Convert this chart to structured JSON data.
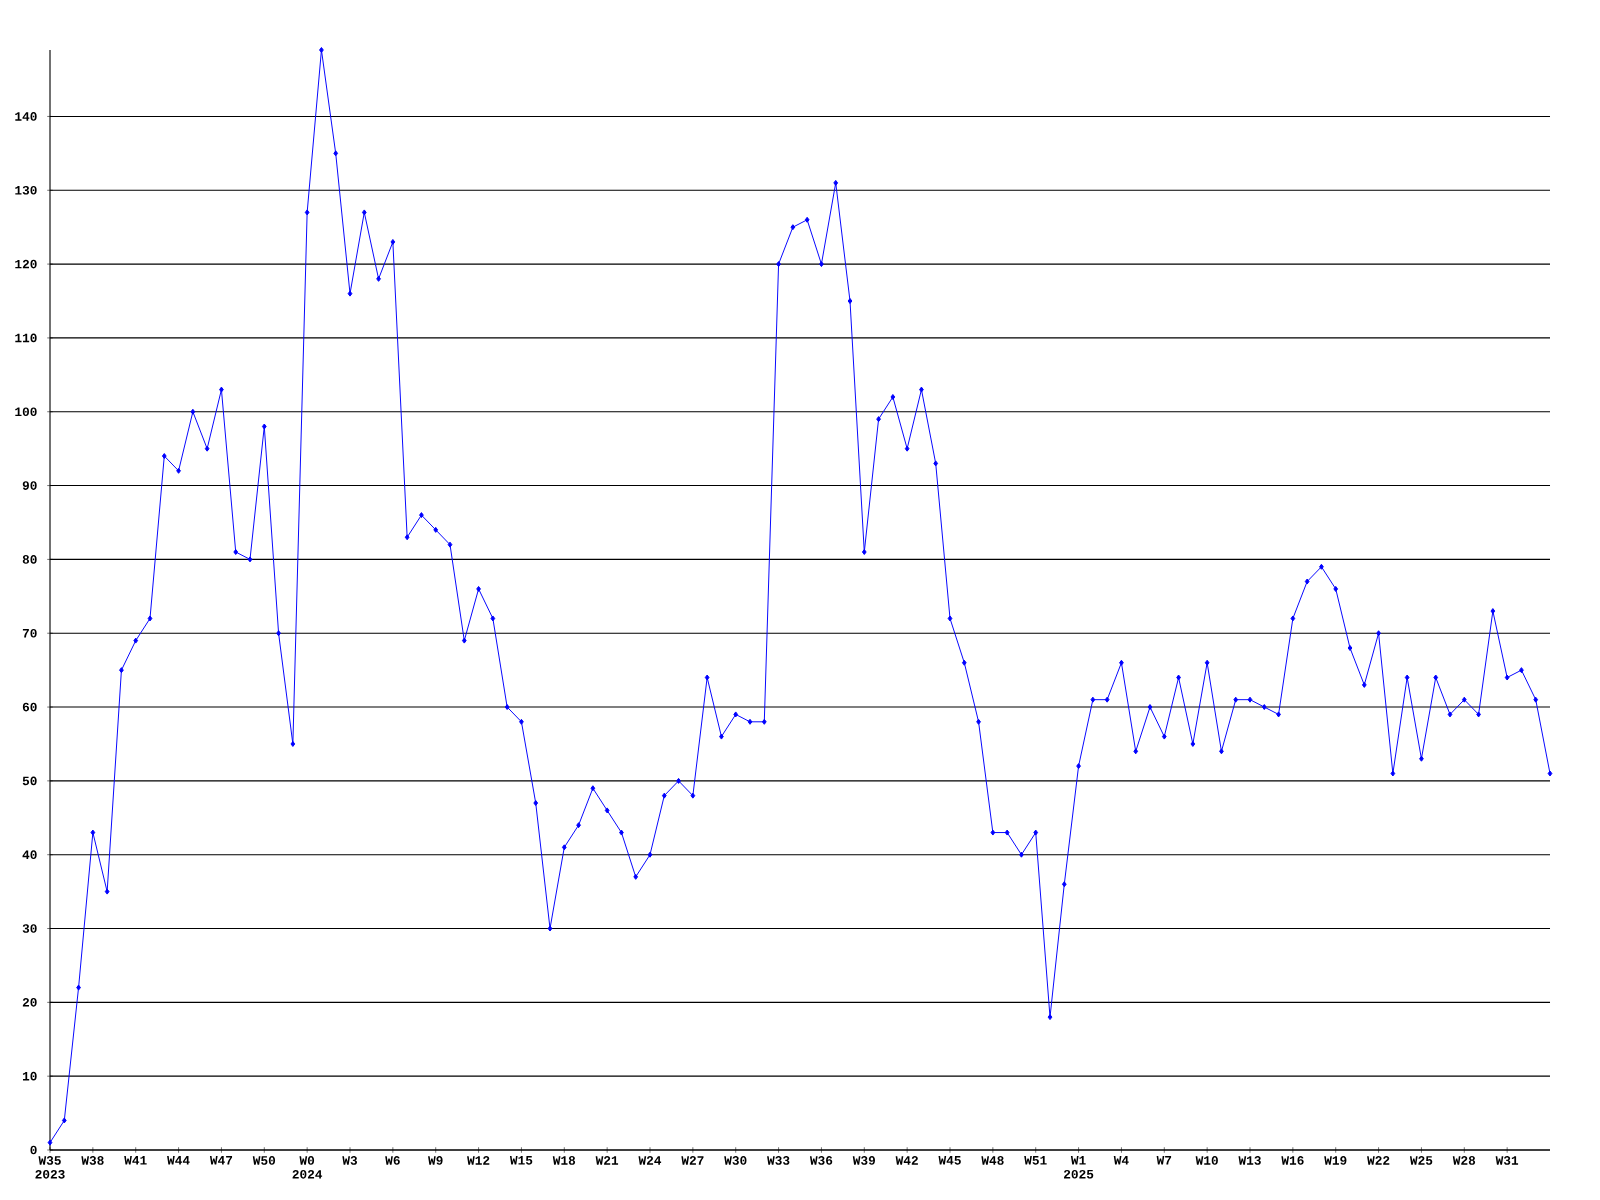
{
  "chart_data": {
    "type": "line",
    "color": "#0000ff",
    "marker": "diamond",
    "grid": "y",
    "categories": [
      "W35 2023",
      null,
      null,
      "W38",
      null,
      null,
      "W41",
      null,
      null,
      "W44",
      null,
      null,
      "W47",
      null,
      null,
      "W50",
      null,
      null,
      "W0 2024",
      null,
      null,
      "W3",
      null,
      null,
      "W6",
      null,
      null,
      "W9",
      null,
      null,
      "W12",
      null,
      null,
      "W15",
      null,
      null,
      "W18",
      null,
      null,
      "W21",
      null,
      null,
      "W24",
      null,
      null,
      "W27",
      null,
      null,
      "W30",
      null,
      null,
      "W33",
      null,
      null,
      "W36",
      null,
      null,
      "W39",
      null,
      null,
      "W42",
      null,
      null,
      "W45",
      null,
      null,
      "W48",
      null,
      null,
      "W51",
      null,
      null,
      "W1 2025",
      null,
      null,
      "W4",
      null,
      null,
      "W7",
      null,
      null,
      "W10",
      null,
      null,
      "W13",
      null,
      null,
      "W16",
      null,
      null,
      "W19",
      null,
      null,
      "W22",
      null,
      null,
      "W25",
      null,
      null,
      "W28",
      null,
      null,
      "W31",
      null,
      null,
      null
    ],
    "values": [
      1,
      4,
      22,
      43,
      35,
      65,
      69,
      72,
      94,
      92,
      100,
      95,
      103,
      81,
      80,
      98,
      70,
      55,
      127,
      149,
      135,
      116,
      127,
      118,
      123,
      83,
      86,
      84,
      82,
      69,
      76,
      72,
      60,
      58,
      47,
      30,
      41,
      44,
      49,
      46,
      43,
      37,
      40,
      48,
      50,
      48,
      64,
      56,
      59,
      58,
      58,
      120,
      125,
      126,
      120,
      131,
      115,
      81,
      99,
      102,
      95,
      103,
      93,
      72,
      66,
      58,
      43,
      43,
      40,
      43,
      18,
      36,
      52,
      61,
      61,
      66,
      54,
      60,
      56,
      64,
      55,
      66,
      54,
      61,
      61,
      60,
      59,
      72,
      77,
      79,
      76,
      68,
      63,
      70,
      51,
      64,
      53,
      64,
      59,
      61,
      59,
      73,
      64,
      65,
      61,
      51
    ],
    "ylim": [
      0,
      149
    ],
    "yticks": [
      0,
      10,
      20,
      30,
      40,
      50,
      60,
      70,
      80,
      90,
      100,
      110,
      120,
      130,
      140
    ]
  }
}
